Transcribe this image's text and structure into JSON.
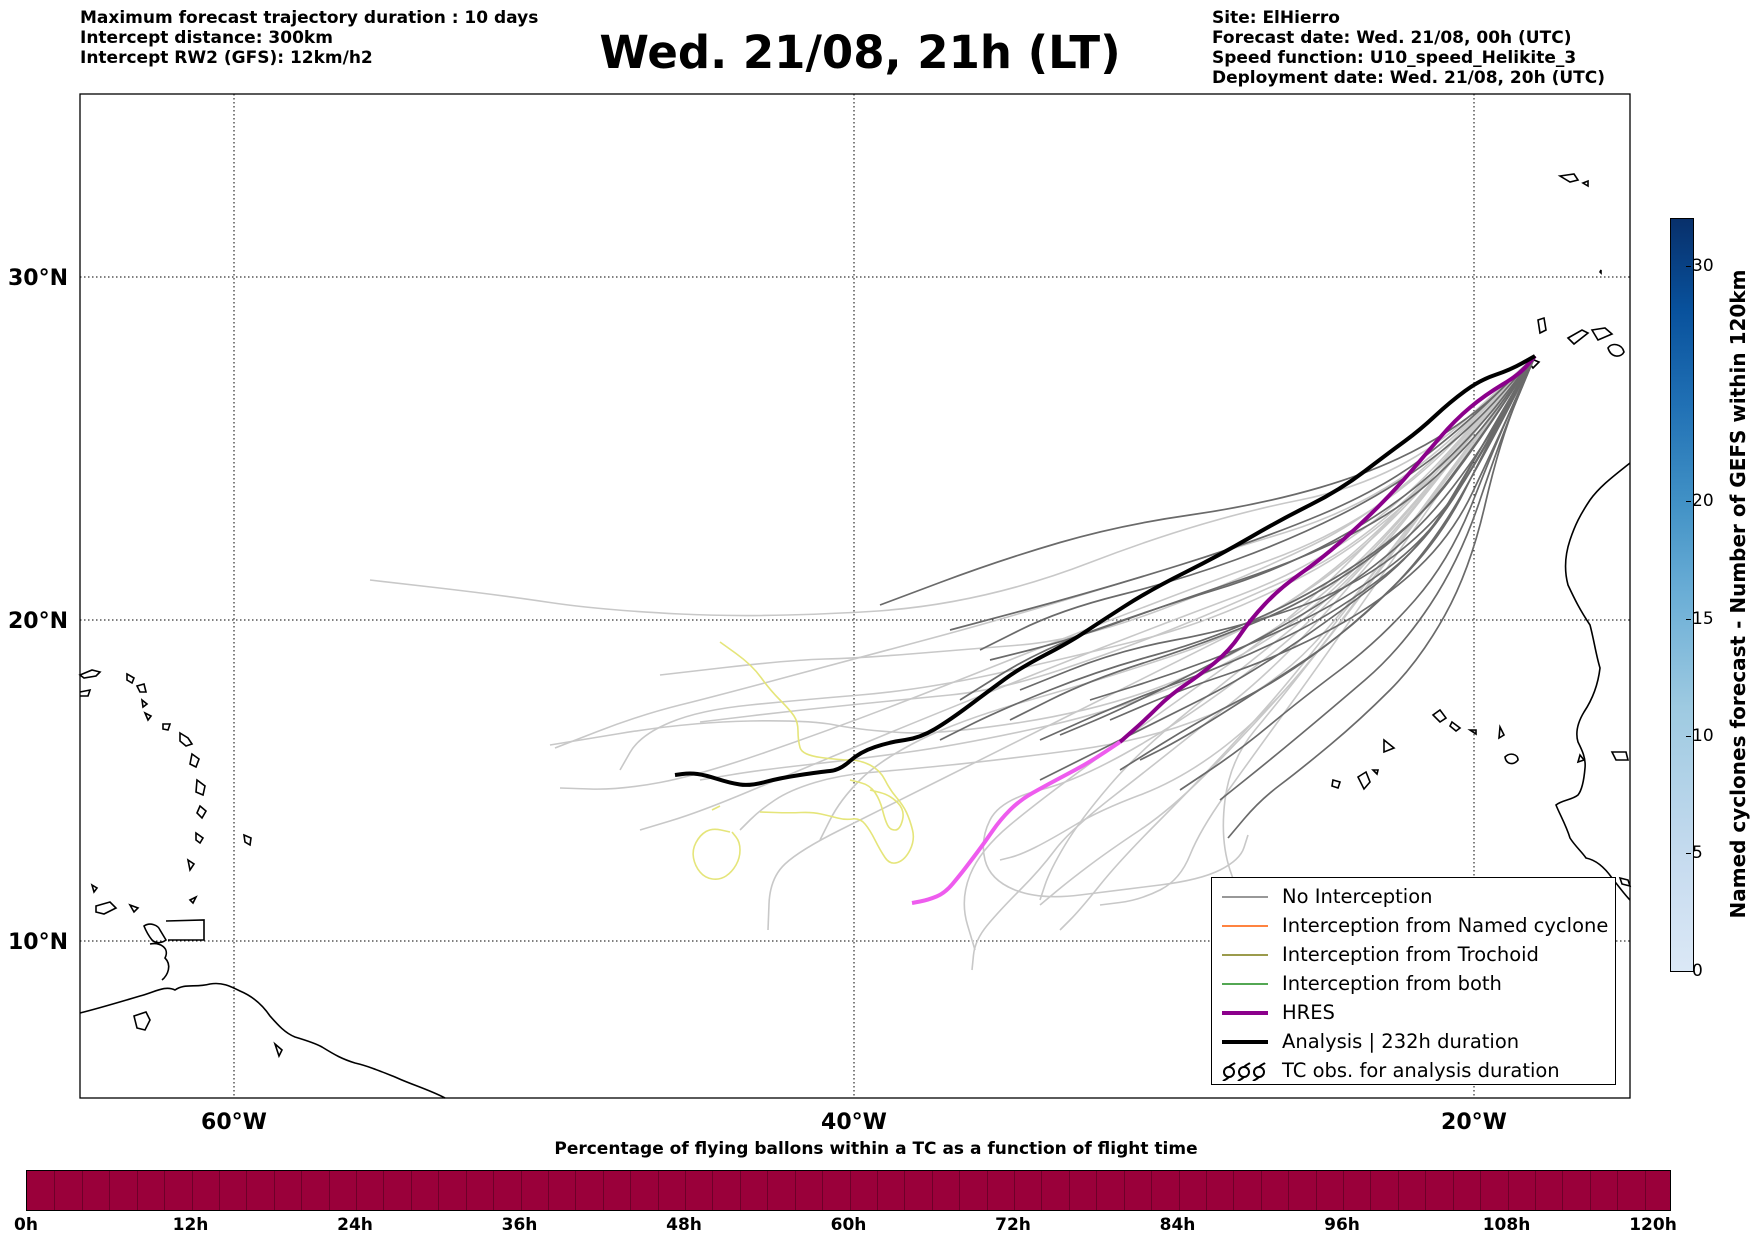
{
  "header": {
    "left_lines": [
      "Maximum forecast trajectory duration : 10 days",
      "Intercept distance: 300km",
      "Intercept RW2 (GFS):  12km/h2"
    ],
    "title": "Wed. 21/08, 21h (LT)",
    "right_lines": [
      "Site: ElHierro",
      "Forecast date: Wed. 21/08, 00h (UTC)",
      "Speed function: U10_speed_Helikite_3",
      "Deployment date: Wed. 21/08, 20h (UTC)"
    ]
  },
  "map": {
    "lat_labels": [
      "30°N",
      "20°N",
      "10°N"
    ],
    "lon_labels": [
      "60°W",
      "40°W",
      "20°W"
    ],
    "gridline_style": "dotted",
    "colors": {
      "gefs_tracks": "#6a6a6a",
      "light_tracks": "#c8c8c8",
      "yellow_track": "#e5e57a",
      "hres": "#8b008b",
      "hres_late": "#ee5cee",
      "analysis": "#000000",
      "coast": "#000000"
    }
  },
  "legend": {
    "items": [
      {
        "label": "No Interception",
        "color": "#777777",
        "style": "thin"
      },
      {
        "label": "Interception from Named cyclone",
        "color": "#ff5a00",
        "style": "thin"
      },
      {
        "label": "Interception from Trochoid",
        "color": "#7a7a10",
        "style": "thin"
      },
      {
        "label": "Interception from both",
        "color": "#1a8a1a",
        "style": "thin"
      },
      {
        "label": "HRES",
        "color": "#8b008b",
        "style": "thick"
      },
      {
        "label": "Analysis | 232h duration",
        "color": "#000000",
        "style": "thick"
      },
      {
        "label": "TC obs. for analysis duration",
        "color": "#000000",
        "style": "tc-symbol"
      }
    ]
  },
  "colorbar_vertical": {
    "label": "Named cyclones forecast - Number of GEFS within 120km",
    "ticks": [
      "0",
      "5",
      "10",
      "15",
      "20",
      "30"
    ]
  },
  "colorbar_horizontal": {
    "title": "Percentage of flying ballons within a TC as a function of flight time",
    "ticks": [
      "0h",
      "12h",
      "24h",
      "36h",
      "48h",
      "60h",
      "72h",
      "84h",
      "96h",
      "108h",
      "120h"
    ],
    "fill_color": "#9a003a"
  }
}
